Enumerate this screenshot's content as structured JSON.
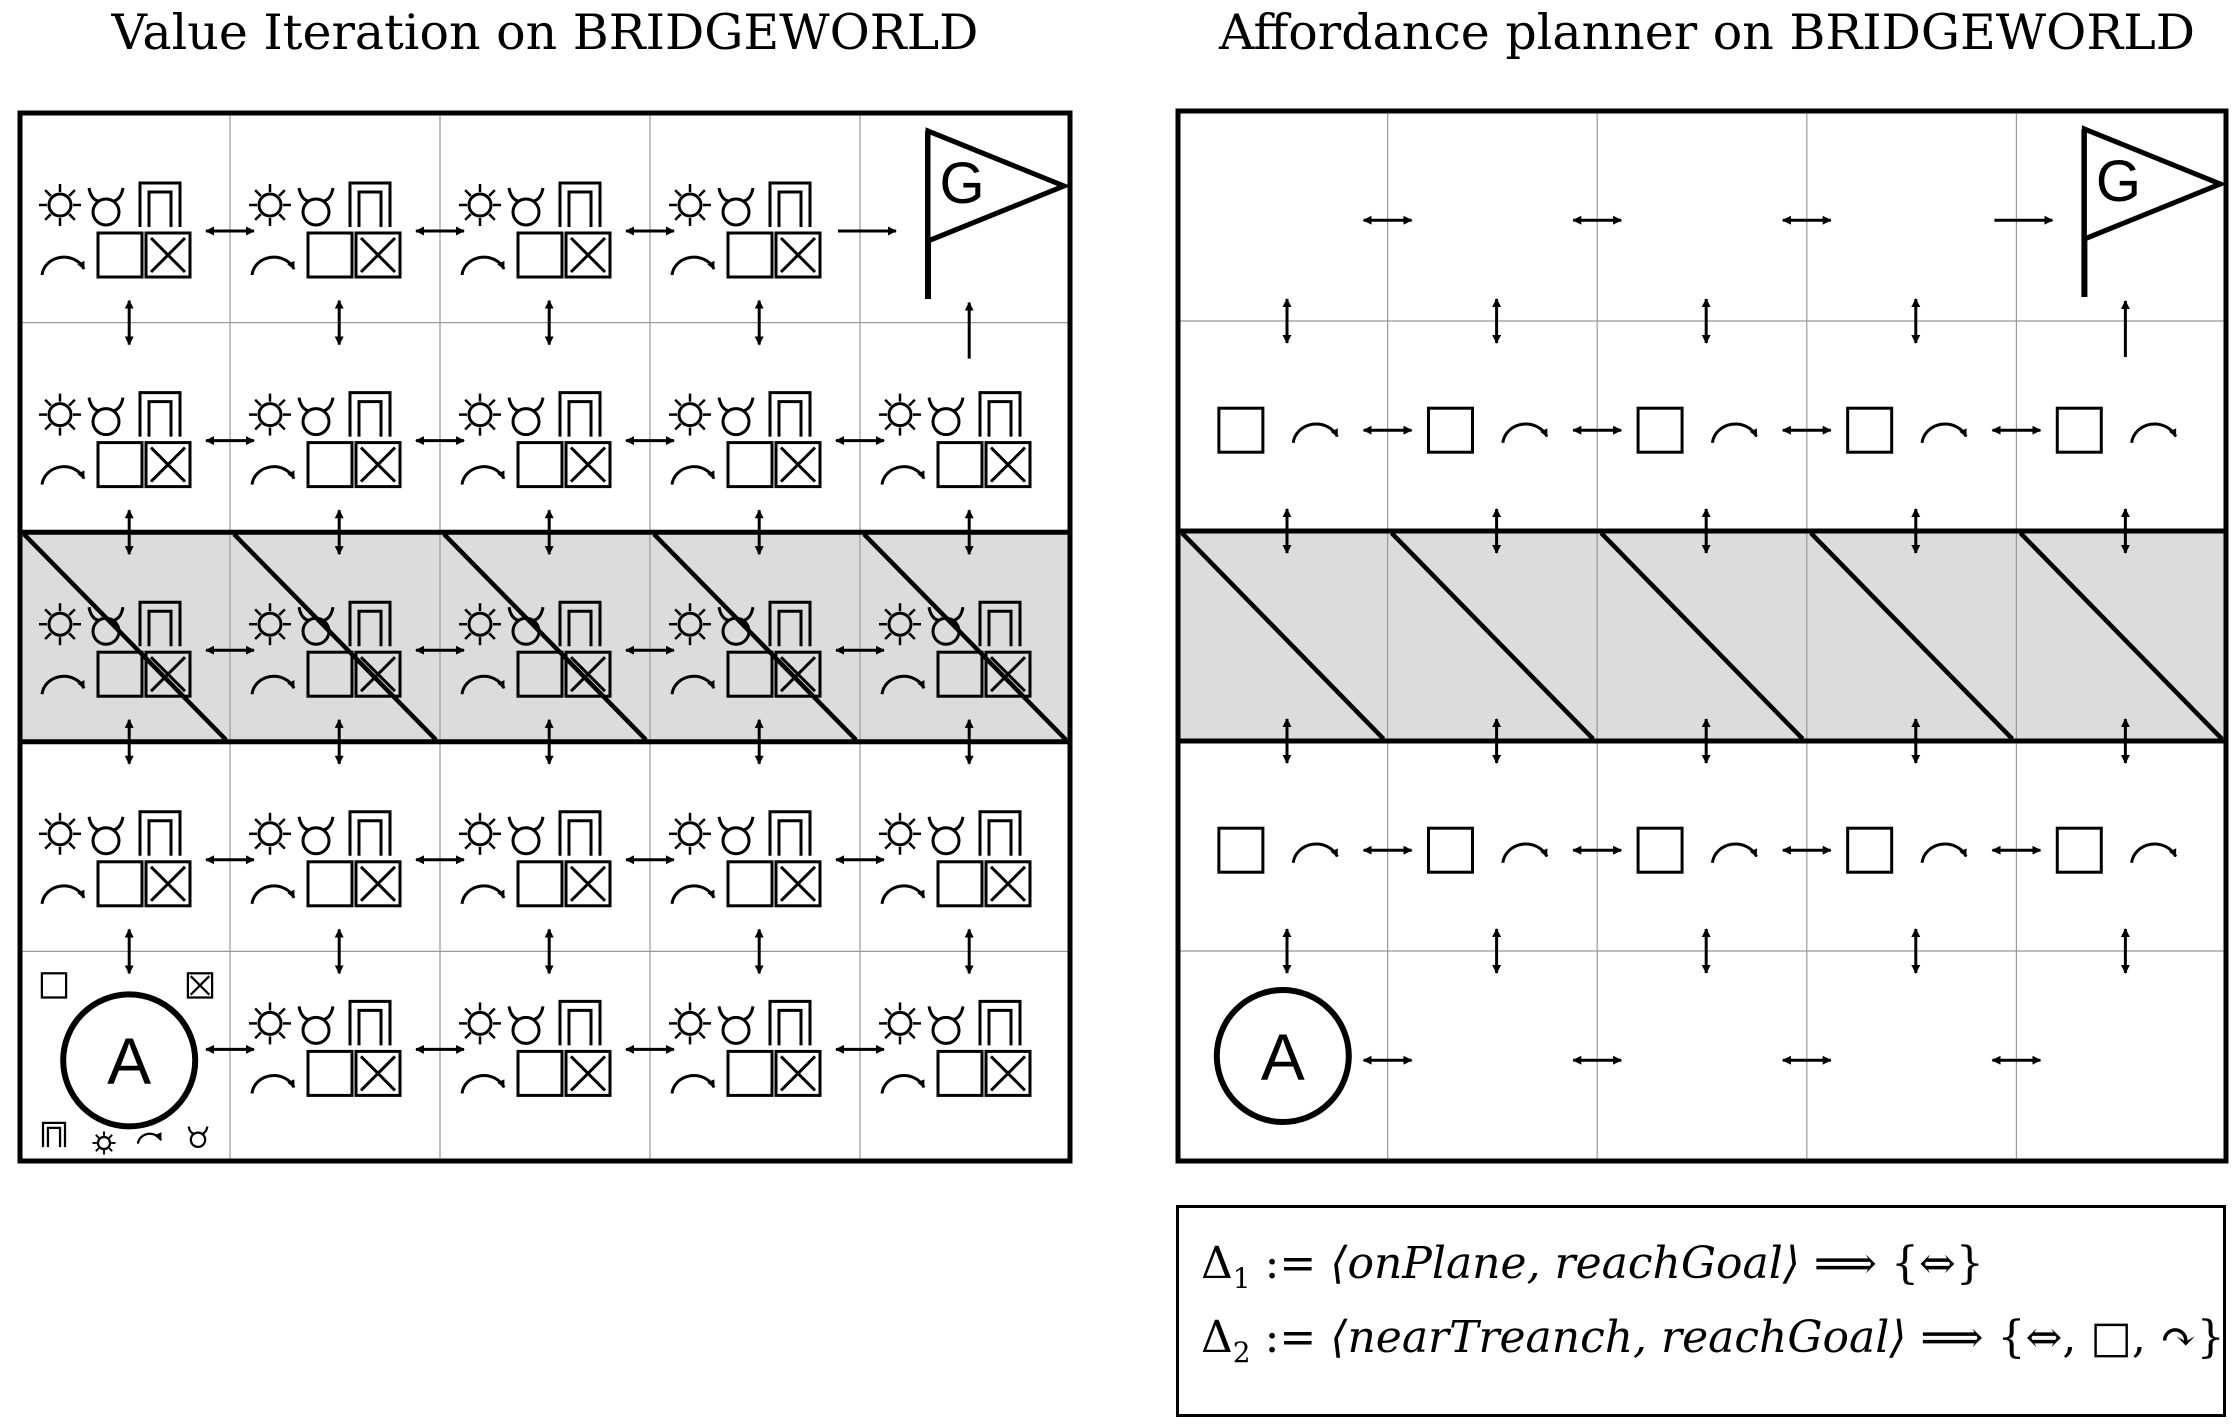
{
  "titles": {
    "left": "Value Iteration on BRIDGEWORLD",
    "right": "Affordance planner on BRIDGEWORLD"
  },
  "grid": {
    "rows": 5,
    "cols": 5,
    "trench_row": 2
  },
  "agent_label": "A",
  "goal_label": "G",
  "icons": {
    "sun": "sun-icon",
    "horns": "horns-icon",
    "gate": "gate-icon",
    "turn": "turn-arrow-icon",
    "box": "box-icon",
    "xbox": "crossed-box-icon",
    "move": "move-arrows-icon"
  },
  "colors": {
    "trench": "#dcdcdc",
    "line": "#000000",
    "gridline": "#999999"
  },
  "rules": [
    {
      "lhs": "Δ",
      "sub": "1",
      "assign": " := ",
      "context": "⟨onPlane, reachGoal⟩",
      "implies": " ⟹ ",
      "actions": "{⇔}"
    },
    {
      "lhs": "Δ",
      "sub": "2",
      "assign": " := ",
      "context": "⟨nearTreanch, reachGoal⟩",
      "implies": " ⟹ ",
      "actions": "{⇔, □, ↷}"
    }
  ]
}
